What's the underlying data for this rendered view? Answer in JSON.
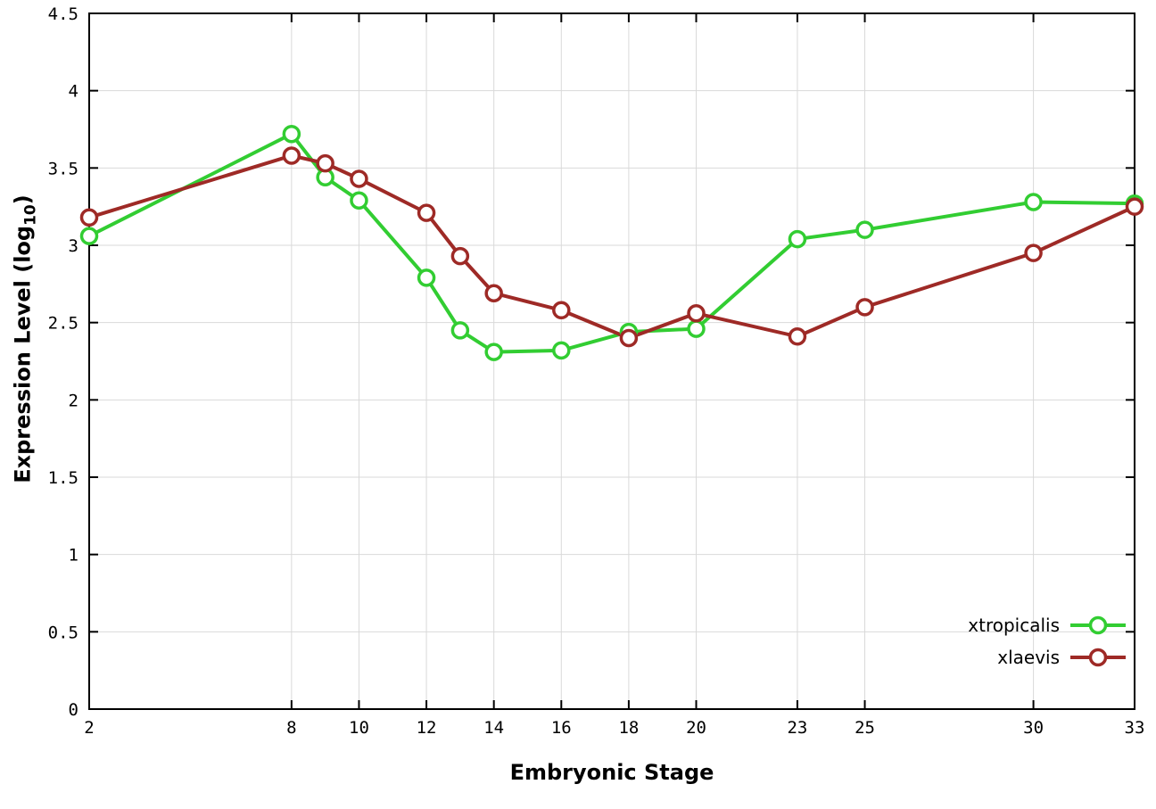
{
  "chart_data": {
    "type": "line",
    "title": "",
    "xlabel": "Embryonic Stage",
    "ylabel": "Expression Level (log10)",
    "ylabel_parts": {
      "pre": "Expression Level (log",
      "sub": "10",
      "post": ")"
    },
    "x": [
      2,
      8,
      9,
      10,
      12,
      13,
      14,
      16,
      18,
      20,
      23,
      25,
      30,
      33
    ],
    "xlim": [
      2,
      33
    ],
    "ylim": [
      0,
      4.5
    ],
    "xticks": [
      2,
      8,
      10,
      12,
      14,
      16,
      18,
      20,
      23,
      25,
      30,
      33
    ],
    "xtick_labels": [
      "2",
      "8",
      "10",
      "12",
      "14",
      "16",
      "18",
      "20",
      "23",
      "25",
      "30",
      "33"
    ],
    "yticks": [
      0,
      0.5,
      1,
      1.5,
      2,
      2.5,
      3,
      3.5,
      4,
      4.5
    ],
    "ytick_labels": [
      "0",
      "0.5",
      "1",
      "1.5",
      "2",
      "2.5",
      "3",
      "3.5",
      "4",
      "4.5"
    ],
    "grid": true,
    "legend_position": "bottom-right",
    "series": [
      {
        "name": "xtropicalis",
        "color": "#32cd32",
        "values": [
          3.06,
          3.72,
          3.44,
          3.29,
          2.79,
          2.45,
          2.31,
          2.32,
          2.44,
          2.46,
          3.04,
          3.1,
          3.28,
          3.27
        ]
      },
      {
        "name": "xlaevis",
        "color": "#9e2a26",
        "values": [
          3.18,
          3.58,
          3.53,
          3.43,
          3.21,
          2.93,
          2.69,
          2.58,
          2.4,
          2.56,
          2.41,
          2.6,
          2.95,
          3.25
        ]
      }
    ]
  },
  "colors": {
    "grid": "#d9d9d9",
    "axis": "#000000",
    "background": "#ffffff",
    "marker_fill": "#ffffff"
  }
}
